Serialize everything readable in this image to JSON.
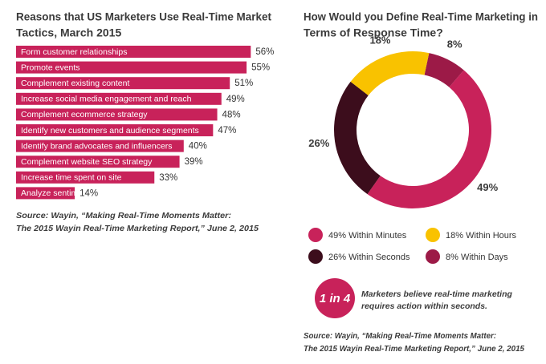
{
  "chart_data": [
    {
      "type": "bar",
      "orientation": "horizontal",
      "title": [
        "Reasons that US Marketers Use Real-Time Market",
        "Tactics, March 2015"
      ],
      "categories": [
        "Form customer relationships",
        "Promote events",
        "Complement existing content",
        "Increase social media engagement and reach",
        "Complement ecommerce strategy",
        "Identify new customers and audience segments",
        "Identify brand advocates and influencers",
        "Complement website SEO strategy",
        "Increase time spent on site",
        "Analyze sentiment"
      ],
      "values": [
        56,
        55,
        51,
        49,
        48,
        47,
        40,
        39,
        33,
        14
      ],
      "value_labels": [
        "56%",
        "55%",
        "51%",
        "49%",
        "48%",
        "47%",
        "40%",
        "39%",
        "33%",
        "14%"
      ],
      "color": "#c8225a",
      "source": [
        "Source: Wayin, “Making Real-Time Moments Matter:",
        "The 2015 Wayin Real-Time Marketing Report,” June 2, 2015"
      ]
    },
    {
      "type": "donut",
      "title": [
        "How Would you Define Real-Time Marketing in",
        "Terms of Response Time?"
      ],
      "categories": [
        "49% Within Minutes",
        "18% Within Hours",
        "26% Within Seconds",
        "8% Within Days"
      ],
      "values": [
        49,
        18,
        26,
        8
      ],
      "value_labels": [
        "49%",
        "18%",
        "26%",
        "8%"
      ],
      "colors": [
        "#c8225a",
        "#f9c200",
        "#3c0d1c",
        "#9c1a47"
      ],
      "annotation": {
        "label": "1 in 4",
        "text": [
          "Marketers  believe real-time marketing",
          "requires action within seconds."
        ]
      },
      "source": [
        "Source: Wayin, “Making Real-Time Moments Matter:",
        "The 2015 Wayin Real-Time Marketing Report,” June 2, 2015"
      ]
    }
  ]
}
